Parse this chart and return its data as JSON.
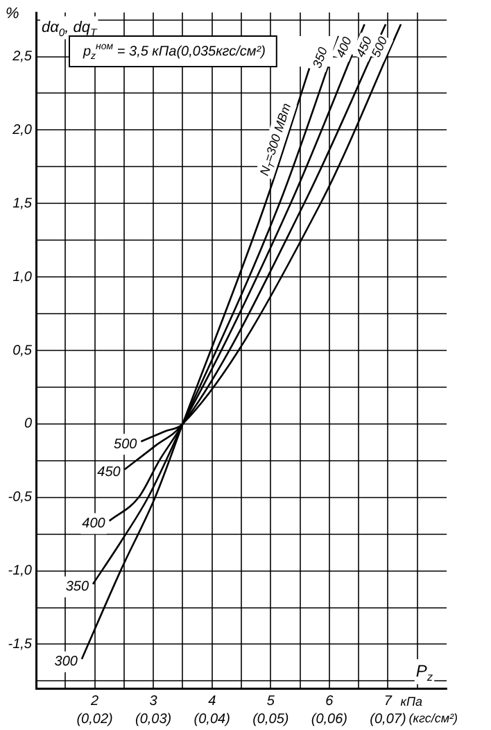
{
  "chart_data": {
    "type": "line",
    "title": "dα$_{0}$, dq$_{T}$",
    "ylabel": "%",
    "xlabel": "кПа",
    "x2label": "(кгс/см²)",
    "xlim": [
      1,
      8
    ],
    "ylim": [
      -1.8,
      2.8
    ],
    "x2lim": [
      0.01,
      0.08
    ],
    "xticks": [
      {
        "value": 1.5,
        "label": null
      },
      2,
      {
        "value": 2.5,
        "label": null
      },
      3,
      {
        "value": 3.5,
        "label": null
      },
      4,
      {
        "value": 4.5,
        "label": null
      },
      5,
      {
        "value": 5.5,
        "label": null
      },
      6,
      {
        "value": 6.5,
        "label": null
      },
      7,
      {
        "value": 7.5,
        "label": null
      }
    ],
    "x2ticks": [
      {
        "value": 0.02,
        "label": "(0,02)"
      },
      {
        "value": 0.03,
        "label": "(0,03)"
      },
      {
        "value": 0.04,
        "label": "(0,04)"
      },
      {
        "value": 0.05,
        "label": "(0,05)"
      },
      {
        "value": 0.06,
        "label": "(0,06)"
      },
      {
        "value": 0.07,
        "label": "(0,07)"
      }
    ],
    "yticks": [
      {
        "value": -1.75,
        "label": null
      },
      {
        "value": -1.5,
        "label": "-1,5"
      },
      {
        "value": -1.25,
        "label": null
      },
      {
        "value": -1,
        "label": "-1,0"
      },
      {
        "value": -0.75,
        "label": null
      },
      {
        "value": -0.5,
        "label": "-0,5"
      },
      {
        "value": -0.25,
        "label": null
      },
      {
        "value": 0,
        "label": "0"
      },
      {
        "value": 0.25,
        "label": null
      },
      {
        "value": 0.5,
        "label": "0,5"
      },
      {
        "value": 0.75,
        "label": null
      },
      {
        "value": 1,
        "label": "1,0"
      },
      {
        "value": 1.25,
        "label": null
      },
      {
        "value": 1.5,
        "label": "1,5"
      },
      {
        "value": 1.75,
        "label": null
      },
      {
        "value": 2,
        "label": "2,0"
      },
      {
        "value": 2.25,
        "label": null
      },
      {
        "value": 2.5,
        "label": "2,5"
      },
      {
        "value": 2.75,
        "label": null
      }
    ],
    "grid": true,
    "legend": false,
    "marker": "none",
    "line_style": "solid",
    "series": [
      {
        "name": "300",
        "color": "#000000",
        "x": [
          1.78,
          2.44,
          3.03,
          3.5,
          4.91,
          5.66
        ],
        "values": [
          -1.6,
          -1.0,
          -0.5,
          0,
          1.5,
          2.42
        ]
      },
      {
        "name": "350",
        "color": "#000000",
        "x": [
          1.97,
          2.45,
          2.91,
          3.5,
          5.15,
          6.16
        ],
        "values": [
          -1.09,
          -0.8,
          -0.5,
          0,
          1.5,
          2.64
        ]
      },
      {
        "name": "400",
        "color": "#000000",
        "x": [
          2.25,
          2.75,
          3.1,
          3.5,
          5.34,
          6.6
        ],
        "values": [
          -0.66,
          -0.5,
          -0.25,
          0,
          1.5,
          2.72
        ]
      },
      {
        "name": "450",
        "color": "#000000",
        "x": [
          2.51,
          3.03,
          3.5,
          5.57,
          6.96
        ],
        "values": [
          -0.31,
          -0.15,
          0,
          1.5,
          2.72
        ]
      },
      {
        "name": "500",
        "color": "#000000",
        "x": [
          2.79,
          3.2,
          3.5,
          5.85,
          7.22
        ],
        "values": [
          -0.12,
          -0.05,
          0,
          1.5,
          2.72
        ]
      }
    ],
    "annotations": [
      "p$_{z}$$^{ном}$ = 3,5 кПа(0,035кгс/см²)",
      "P$_{z}$",
      "N$_{T}$=300 МВт",
      "350",
      "400",
      "450",
      "500"
    ]
  }
}
